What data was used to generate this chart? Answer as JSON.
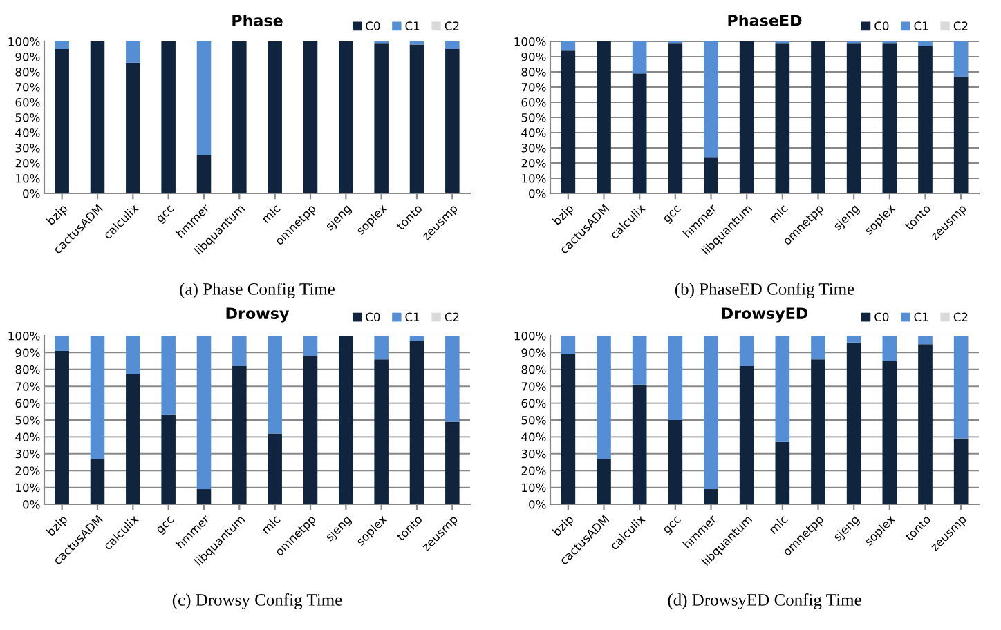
{
  "chart_data": [
    {
      "type": "bar",
      "title": "Phase",
      "stacked": true,
      "grid": false,
      "legend": "top right",
      "annotations": [
        "(a) Phase Config Time"
      ],
      "categories": [
        "bzip",
        "cactusADM",
        "calculix",
        "gcc",
        "hmmer",
        "libquantum",
        "mlc",
        "omnetpp",
        "sjeng",
        "soplex",
        "tonto",
        "zeusmp"
      ],
      "ylim": [
        0,
        100
      ],
      "yticks": [
        {
          "value": 0,
          "label": "0%"
        },
        {
          "value": 10,
          "label": "10%"
        },
        {
          "value": 20,
          "label": "20%"
        },
        {
          "value": 30,
          "label": "30%"
        },
        {
          "value": 40,
          "label": "40%"
        },
        {
          "value": 50,
          "label": "50%"
        },
        {
          "value": 60,
          "label": "60%"
        },
        {
          "value": 70,
          "label": "70%"
        },
        {
          "value": 80,
          "label": "80%"
        },
        {
          "value": 90,
          "label": "90%"
        },
        {
          "value": 100,
          "label": "100%"
        }
      ],
      "series": [
        {
          "name": "C0",
          "color": "#10243e",
          "values": [
            95,
            100,
            86,
            100,
            25,
            100,
            100,
            100,
            100,
            99,
            98,
            95
          ]
        },
        {
          "name": "C1",
          "color": "#558ed5",
          "values": [
            5,
            0,
            14,
            0,
            75,
            0,
            0,
            0,
            0,
            1,
            2,
            5
          ]
        },
        {
          "name": "C2",
          "color": "#d9d9d9",
          "values": [
            0,
            0,
            0,
            0,
            0,
            0,
            0,
            0,
            0,
            0,
            0,
            0
          ]
        }
      ]
    },
    {
      "type": "bar",
      "title": "PhaseED",
      "stacked": true,
      "grid": "y",
      "legend": "top right",
      "annotations": [
        "(b) PhaseED Config Time"
      ],
      "categories": [
        "bzip",
        "cactusADM",
        "calculix",
        "gcc",
        "hmmer",
        "libquantum",
        "mlc",
        "omnetpp",
        "sjeng",
        "soplex",
        "tonto",
        "zeusmp"
      ],
      "ylim": [
        0,
        100
      ],
      "yticks": [
        {
          "value": 0,
          "label": "0%"
        },
        {
          "value": 10,
          "label": "10%"
        },
        {
          "value": 20,
          "label": "20%"
        },
        {
          "value": 30,
          "label": "30%"
        },
        {
          "value": 40,
          "label": "40%"
        },
        {
          "value": 50,
          "label": "50%"
        },
        {
          "value": 60,
          "label": "60%"
        },
        {
          "value": 70,
          "label": "70%"
        },
        {
          "value": 80,
          "label": "80%"
        },
        {
          "value": 90,
          "label": "90%"
        },
        {
          "value": 100,
          "label": "100%"
        }
      ],
      "series": [
        {
          "name": "C0",
          "color": "#10243e",
          "values": [
            94,
            100,
            79,
            99,
            24,
            100,
            99,
            100,
            99,
            99,
            97,
            77
          ]
        },
        {
          "name": "C1",
          "color": "#558ed5",
          "values": [
            6,
            0,
            21,
            1,
            76,
            0,
            1,
            0,
            1,
            1,
            3,
            23
          ]
        },
        {
          "name": "C2",
          "color": "#d9d9d9",
          "values": [
            0,
            0,
            0,
            0,
            0,
            0,
            0,
            0,
            0,
            0,
            0,
            0
          ]
        }
      ]
    },
    {
      "type": "bar",
      "title": "Drowsy",
      "stacked": true,
      "grid": "y",
      "legend": "top right",
      "annotations": [
        "(c) Drowsy Config Time"
      ],
      "categories": [
        "bzip",
        "cactusADM",
        "calculix",
        "gcc",
        "hmmer",
        "libquantum",
        "mlc",
        "omnetpp",
        "sjeng",
        "soplex",
        "tonto",
        "zeusmp"
      ],
      "ylim": [
        0,
        100
      ],
      "yticks": [
        {
          "value": 0,
          "label": "0%"
        },
        {
          "value": 10,
          "label": "10%"
        },
        {
          "value": 20,
          "label": "20%"
        },
        {
          "value": 30,
          "label": "30%"
        },
        {
          "value": 40,
          "label": "40%"
        },
        {
          "value": 50,
          "label": "50%"
        },
        {
          "value": 60,
          "label": "60%"
        },
        {
          "value": 70,
          "label": "70%"
        },
        {
          "value": 80,
          "label": "80%"
        },
        {
          "value": 90,
          "label": "90%"
        },
        {
          "value": 100,
          "label": "100%"
        }
      ],
      "series": [
        {
          "name": "C0",
          "color": "#10243e",
          "values": [
            91,
            27,
            77,
            53,
            9,
            82,
            42,
            88,
            100,
            86,
            97,
            49
          ]
        },
        {
          "name": "C1",
          "color": "#558ed5",
          "values": [
            9,
            73,
            23,
            47,
            91,
            18,
            58,
            12,
            0,
            14,
            3,
            51
          ]
        },
        {
          "name": "C2",
          "color": "#d9d9d9",
          "values": [
            0,
            0,
            0,
            0,
            0,
            0,
            0,
            0,
            0,
            0,
            0,
            0
          ]
        }
      ]
    },
    {
      "type": "bar",
      "title": "DrowsyED",
      "stacked": true,
      "grid": "y",
      "legend": "top right",
      "annotations": [
        "(d) DrowsyED Config Time"
      ],
      "categories": [
        "bzip",
        "cactusADM",
        "calculix",
        "gcc",
        "hmmer",
        "libquantum",
        "mlc",
        "omnetpp",
        "sjeng",
        "soplex",
        "tonto",
        "zeusmp"
      ],
      "ylim": [
        0,
        100
      ],
      "yticks": [
        {
          "value": 0,
          "label": "0%"
        },
        {
          "value": 10,
          "label": "10%"
        },
        {
          "value": 20,
          "label": "20%"
        },
        {
          "value": 30,
          "label": "30%"
        },
        {
          "value": 40,
          "label": "40%"
        },
        {
          "value": 50,
          "label": "50%"
        },
        {
          "value": 60,
          "label": "60%"
        },
        {
          "value": 70,
          "label": "70%"
        },
        {
          "value": 80,
          "label": "80%"
        },
        {
          "value": 90,
          "label": "90%"
        },
        {
          "value": 100,
          "label": "100%"
        }
      ],
      "series": [
        {
          "name": "C0",
          "color": "#10243e",
          "values": [
            89,
            27,
            71,
            50,
            9,
            82,
            37,
            86,
            96,
            85,
            95,
            39
          ]
        },
        {
          "name": "C1",
          "color": "#558ed5",
          "values": [
            11,
            73,
            29,
            50,
            91,
            18,
            63,
            14,
            4,
            15,
            5,
            61
          ]
        },
        {
          "name": "C2",
          "color": "#d9d9d9",
          "values": [
            0,
            0,
            0,
            0,
            0,
            0,
            0,
            0,
            0,
            0,
            0,
            0
          ]
        }
      ]
    }
  ]
}
